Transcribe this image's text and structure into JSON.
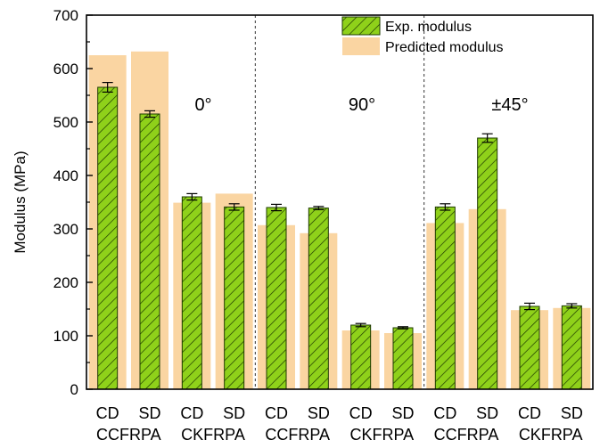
{
  "chart_data": {
    "type": "bar",
    "title": "",
    "ylabel": "Modulus (MPa)",
    "xlabel": "",
    "ylim": [
      0,
      700
    ],
    "yticks": [
      0,
      100,
      200,
      300,
      400,
      500,
      600,
      700
    ],
    "grid": false,
    "legend_position": "top-right",
    "categories": [
      "CD",
      "SD",
      "CD",
      "SD",
      "CD",
      "SD",
      "CD",
      "SD",
      "CD",
      "SD",
      "CD",
      "SD"
    ],
    "groups": [
      "CCFRPA",
      "CKFRPA",
      "CCFRPA",
      "CKFRPA",
      "CCFRPA",
      "CKFRPA"
    ],
    "sections": [
      "0°",
      "90°",
      "±45°"
    ],
    "series": [
      {
        "name": "Exp. modulus",
        "color": "#8fd11a",
        "pattern": "diagonal-hatch",
        "values": [
          565,
          515,
          360,
          341,
          340,
          339,
          120,
          115,
          341,
          470,
          155,
          156
        ],
        "errors": [
          9,
          6,
          6,
          6,
          6,
          3,
          3,
          2,
          6,
          8,
          6,
          4
        ]
      },
      {
        "name": "Predicted modulus",
        "color": "#fad5a2",
        "values": [
          625,
          632,
          349,
          366,
          307,
          292,
          110,
          105,
          311,
          337,
          148,
          152
        ]
      }
    ]
  }
}
